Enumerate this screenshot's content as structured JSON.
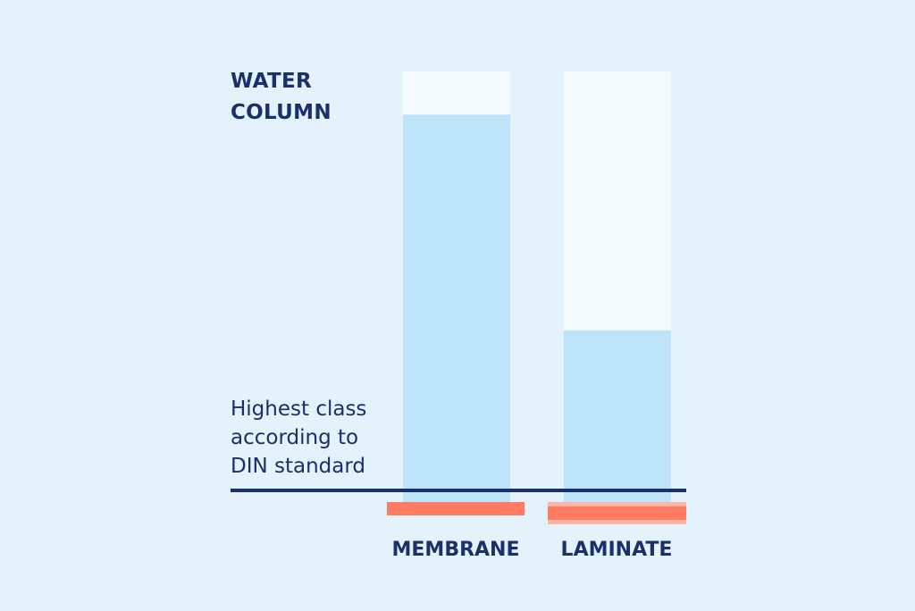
{
  "chart_data": {
    "type": "bar",
    "ylabel": "WATER\nCOLUMN",
    "categories": [
      "MEMBRANE",
      "LAMINATE"
    ],
    "values": [
      90,
      40
    ],
    "ylim": [
      0,
      100
    ],
    "reference_line": {
      "label": "Highest class\naccording to\nDIN standard",
      "value": 0
    },
    "grid": false
  },
  "colors": {
    "background": "#e3f2fb",
    "bar_fill": "#bde4f9",
    "bar_track": "#f5fbff",
    "reference_line": "#1b2f6b",
    "base_bar": "#ff7b62",
    "base_bar_light": "#ffb4a6",
    "text": "#1b2f6b"
  }
}
